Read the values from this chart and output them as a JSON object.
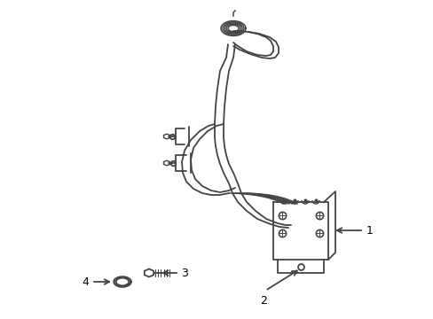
{
  "background_color": "#ffffff",
  "line_color": "#444444",
  "line_width": 1.3,
  "label_color": "#000000",
  "label_fontsize": 9,
  "figsize": [
    4.89,
    3.6
  ],
  "dpi": 100
}
